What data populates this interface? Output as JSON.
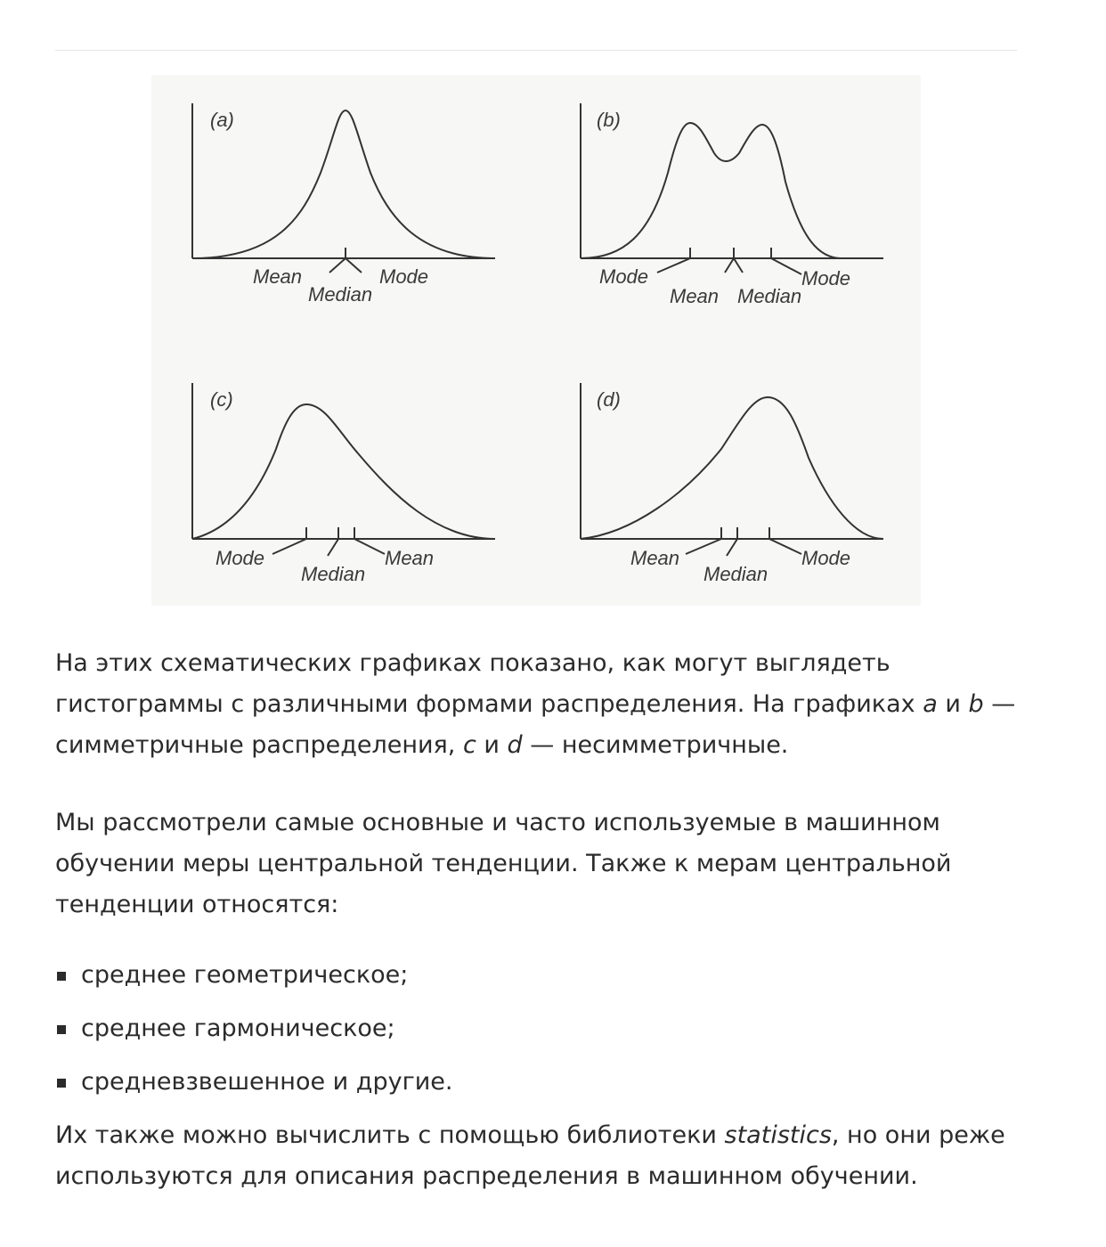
{
  "figure": {
    "panels": [
      {
        "id": "a",
        "label": "(a)",
        "labels": {
          "mean": "Mean",
          "median": "Median",
          "mode": "Mode"
        }
      },
      {
        "id": "b",
        "label": "(b)",
        "labels": {
          "mode_left": "Mode",
          "mean": "Mean",
          "median": "Median",
          "mode_right": "Mode"
        }
      },
      {
        "id": "c",
        "label": "(c)",
        "labels": {
          "mode": "Mode",
          "median": "Median",
          "mean": "Mean"
        }
      },
      {
        "id": "d",
        "label": "(d)",
        "labels": {
          "mean": "Mean",
          "median": "Median",
          "mode": "Mode"
        }
      }
    ]
  },
  "paragraph1": {
    "t1": "На этих схематических графиках показано, как могут выглядеть гистограммы с различными формами распределения. На графиках ",
    "a": "a",
    "t2": " и ",
    "b": "b",
    "t3": " — симметричные распределения, ",
    "c": "c",
    "t4": " и ",
    "d": "d",
    "t5": " — несимметричные."
  },
  "paragraph2": "Мы рассмотрели самые основные и часто используемые в машинном обучении меры центральной тенденции. Также к мерам центральной тенденции относятся:",
  "list": [
    "среднее геометрическое;",
    "среднее гармоническое;",
    "средневзвешенное и другие."
  ],
  "paragraph3": {
    "t1": "Их также можно вычислить с помощью библиотеки ",
    "lib": "statistics",
    "t2": ", но они реже используются для описания распределения в машинном обучении."
  }
}
